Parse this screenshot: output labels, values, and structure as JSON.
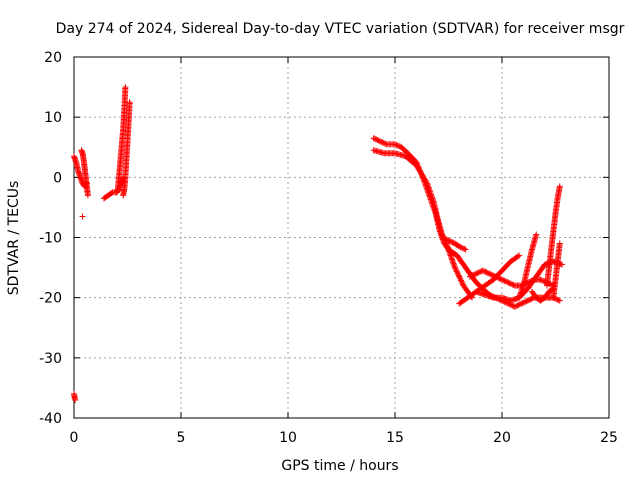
{
  "chart_data": {
    "type": "scatter",
    "title": "Day 274 of 2024, Sidereal Day-to-day VTEC variation (SDTVAR) for receiver msgr",
    "xlabel": "GPS time / hours",
    "ylabel": "SDTVAR / TECUs",
    "xlim": [
      0,
      25
    ],
    "ylim": [
      -40,
      20
    ],
    "xticks": [
      0,
      5,
      10,
      15,
      20,
      25
    ],
    "yticks": [
      -40,
      -30,
      -20,
      -10,
      0,
      10,
      20
    ],
    "grid": true,
    "legend": "none",
    "marker": "+",
    "series": [
      {
        "name": "SDTVAR",
        "color": "#ff0000",
        "tracks": [
          {
            "x": [
              0.0,
              0.1,
              0.2,
              0.3,
              0.4,
              0.5,
              0.6
            ],
            "y": [
              3.5,
              2.5,
              1.0,
              0.0,
              -1.0,
              -1.5,
              -1.0
            ]
          },
          {
            "x": [
              0.35,
              0.4,
              0.45,
              0.5,
              0.55,
              0.6,
              0.65
            ],
            "y": [
              4.5,
              4.0,
              3.0,
              1.5,
              0.0,
              -1.5,
              -3.0
            ]
          },
          {
            "x": [
              0.4
            ],
            "y": [
              -6.5
            ]
          },
          {
            "x": [
              0.0,
              0.05
            ],
            "y": [
              -36.0,
              -37.0
            ]
          },
          {
            "x": [
              1.4,
              1.6,
              1.8,
              2.0,
              2.1,
              2.2,
              2.3
            ],
            "y": [
              -3.5,
              -3.0,
              -2.5,
              -2.5,
              -2.0,
              -1.0,
              0.0
            ]
          },
          {
            "x": [
              2.0,
              2.05,
              2.1,
              2.15,
              2.2,
              2.25,
              2.3,
              2.35,
              2.4
            ],
            "y": [
              -2.5,
              -2.0,
              0.0,
              2.0,
              4.0,
              6.0,
              8.0,
              11.0,
              15.0
            ]
          },
          {
            "x": [
              2.3,
              2.35,
              2.4,
              2.45,
              2.5,
              2.55,
              2.6
            ],
            "y": [
              -3.0,
              -2.0,
              0.0,
              3.0,
              6.0,
              9.0,
              12.5
            ]
          },
          {
            "x": [
              14.0,
              14.3,
              14.6,
              15.0,
              15.3,
              15.6,
              16.0,
              16.3,
              16.6,
              16.9,
              17.1,
              17.3,
              17.5,
              17.7,
              17.9,
              18.2,
              18.5,
              18.8,
              19.1,
              19.4,
              19.7,
              20.0,
              20.3,
              20.6,
              20.9,
              21.2,
              21.5,
              21.8,
              22.1,
              22.4,
              22.7
            ],
            "y": [
              6.5,
              6.0,
              5.5,
              5.5,
              5.0,
              4.0,
              2.5,
              0.0,
              -3.0,
              -6.0,
              -9.0,
              -11.0,
              -12.0,
              -12.5,
              -13.0,
              -14.5,
              -16.0,
              -17.5,
              -18.5,
              -19.5,
              -20.0,
              -20.5,
              -21.0,
              -21.5,
              -21.0,
              -20.5,
              -20.0,
              -20.0,
              -20.0,
              -20.0,
              -20.5
            ]
          },
          {
            "x": [
              14.0,
              14.5,
              15.0,
              15.5,
              16.0,
              16.5,
              16.8,
              17.0,
              17.2,
              17.4,
              17.6,
              17.8,
              18.0,
              18.2,
              18.4,
              18.6
            ],
            "y": [
              4.5,
              4.0,
              4.0,
              3.5,
              2.0,
              -1.0,
              -4.0,
              -7.0,
              -9.5,
              -11.0,
              -13.0,
              -15.0,
              -16.5,
              -18.0,
              -19.0,
              -20.0
            ]
          },
          {
            "x": [
              17.2,
              17.5,
              17.8,
              18.0,
              18.3
            ],
            "y": [
              -10.0,
              -10.5,
              -11.0,
              -11.5,
              -12.0
            ]
          },
          {
            "x": [
              18.5,
              18.8,
              19.1,
              19.4,
              19.7,
              20.0,
              20.3,
              20.6,
              20.9,
              21.2,
              21.5,
              21.8,
              22.1,
              22.4
            ],
            "y": [
              -16.5,
              -16.0,
              -15.5,
              -16.0,
              -16.5,
              -17.0,
              -17.5,
              -18.0,
              -18.0,
              -17.5,
              -17.0,
              -17.0,
              -17.5,
              -18.0
            ]
          },
          {
            "x": [
              18.0,
              18.4,
              18.8,
              19.2,
              19.6,
              20.0,
              20.4,
              20.8
            ],
            "y": [
              -21.0,
              -20.0,
              -19.0,
              -18.0,
              -17.0,
              -15.5,
              -14.0,
              -13.0
            ]
          },
          {
            "x": [
              18.8,
              19.2,
              19.6,
              20.0,
              20.4,
              20.8,
              21.2,
              21.6,
              22.0,
              22.4,
              22.8
            ],
            "y": [
              -19.0,
              -19.5,
              -20.0,
              -20.0,
              -20.5,
              -20.0,
              -18.5,
              -16.5,
              -14.5,
              -14.0,
              -14.5
            ]
          },
          {
            "x": [
              20.8,
              21.0,
              21.2,
              21.4,
              21.6
            ],
            "y": [
              -20.0,
              -18.0,
              -15.0,
              -12.0,
              -9.5
            ]
          },
          {
            "x": [
              21.4,
              21.6,
              21.8,
              22.0,
              22.2,
              22.4
            ],
            "y": [
              -19.0,
              -20.0,
              -20.5,
              -20.0,
              -19.0,
              -18.5
            ]
          },
          {
            "x": [
              22.1,
              22.2,
              22.3,
              22.4,
              22.5,
              22.6,
              22.7
            ],
            "y": [
              -18.0,
              -15.0,
              -12.0,
              -9.0,
              -6.0,
              -3.5,
              -1.5
            ]
          },
          {
            "x": [
              22.4,
              22.5,
              22.6,
              22.7
            ],
            "y": [
              -20.0,
              -17.0,
              -14.0,
              -11.0
            ]
          }
        ]
      }
    ]
  }
}
